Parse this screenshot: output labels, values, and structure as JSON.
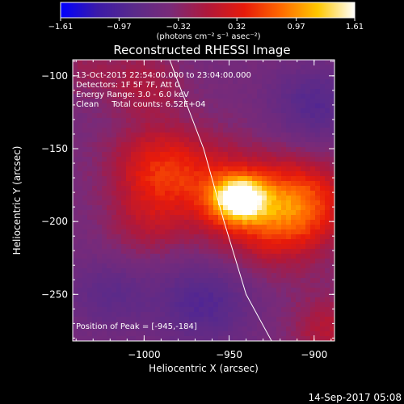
{
  "chart_data": {
    "type": "heatmap",
    "title": "Reconstructed RHESSI Image",
    "xlabel": "Heliocentric X (arcsec)",
    "ylabel": "Heliocentric Y (arcsec)",
    "xlim": [
      -1042,
      -888
    ],
    "ylim": [
      -282,
      -89
    ],
    "x_ticks": [
      -1000,
      -950,
      -900
    ],
    "x_tick_labels": [
      "−1000",
      "−950",
      "−900"
    ],
    "y_ticks": [
      -100,
      -150,
      -200,
      -250
    ],
    "y_tick_labels": [
      "−100",
      "−150",
      "−200",
      "−250"
    ],
    "colorbar": {
      "min": -1.61,
      "max": 1.61,
      "ticks": [
        -1.61,
        -0.97,
        -0.32,
        0.32,
        0.97,
        1.61
      ],
      "tick_labels": [
        "−1.61",
        "−0.97",
        "−0.32",
        "0.32",
        "0.97",
        "1.61"
      ],
      "unit_label": "(photons cm⁻² s⁻¹ asec⁻²)",
      "colors": [
        "#0000ff",
        "#3b1aa8",
        "#5a2a8a",
        "#7a2a78",
        "#b0183a",
        "#e81a0a",
        "#ff6a00",
        "#ffc800",
        "#ffffff"
      ]
    },
    "peak": {
      "x": -945,
      "y": -184
    },
    "limb_curve": [
      [
        -985,
        -89
      ],
      [
        -965,
        -150
      ],
      [
        -953,
        -200
      ],
      [
        -940,
        -250
      ],
      [
        -925,
        -282
      ]
    ],
    "annotations": [
      "13-Oct-2015 22:54:00.000 to 23:04:00.000",
      "Detectors: 1F 5F 7F, Att 0",
      "Energy Range: 3.0 - 6.0 keV",
      "Clean     Total counts: 6.52E+04"
    ],
    "peak_label": "Position of Peak = [-945,-184]",
    "grid": false
  },
  "footer": {
    "date_stamp": "14-Sep-2017 05:08"
  }
}
